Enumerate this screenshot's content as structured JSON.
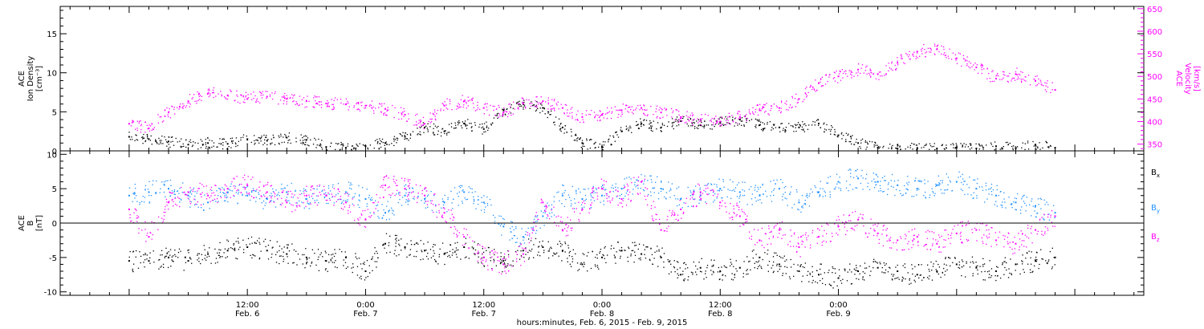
{
  "chart_data": [
    {
      "type": "scatter",
      "panel": "ion-density-velocity",
      "ylabel_left": [
        "ACE",
        "Ion Density",
        "[cm⁻³]"
      ],
      "ylabel_right": [
        "ACE",
        "Velocity",
        "[km/s]"
      ],
      "yticks_left": [
        "0",
        "5",
        "10",
        "15"
      ],
      "ylim_left": [
        0,
        18.5
      ],
      "yticks_right": [
        "350",
        "400",
        "450",
        "500",
        "550",
        "600",
        "650"
      ],
      "ylim_right": [
        335,
        655
      ],
      "series": [
        {
          "color": "#000000",
          "axis": "left",
          "x": [
            0,
            2,
            4,
            6,
            8,
            10,
            12,
            14,
            16,
            18,
            20,
            22,
            24,
            26,
            28,
            30,
            32,
            34,
            36,
            38,
            40,
            42,
            44,
            46,
            48,
            50,
            52,
            54,
            56,
            58,
            60,
            62,
            64,
            66,
            68,
            70,
            72,
            74,
            76,
            78,
            80,
            82,
            84,
            86,
            88,
            90,
            92,
            94
          ],
          "values": [
            1.8,
            1.5,
            1.2,
            0.8,
            1.0,
            0.9,
            1.5,
            1.3,
            1.7,
            1.4,
            0.5,
            0.4,
            0.6,
            1.0,
            1.8,
            3.0,
            2.5,
            3.5,
            2.8,
            5.2,
            6.0,
            5.5,
            3.0,
            1.0,
            0.5,
            2.5,
            3.5,
            3.0,
            3.8,
            3.3,
            3.6,
            4.0,
            3.3,
            3.0,
            3.0,
            3.5,
            2.0,
            1.0,
            0.4,
            0.3,
            0.3,
            0.3,
            0.4,
            0.3,
            0.6,
            0.3,
            0.8,
            0.4
          ]
        },
        {
          "color": "#ff00ff",
          "axis": "right",
          "x": [
            0,
            2,
            4,
            6,
            8,
            10,
            12,
            14,
            16,
            18,
            20,
            22,
            24,
            26,
            28,
            30,
            32,
            34,
            36,
            38,
            40,
            42,
            44,
            46,
            48,
            50,
            52,
            54,
            56,
            58,
            60,
            62,
            64,
            66,
            68,
            70,
            72,
            74,
            76,
            78,
            80,
            82,
            84,
            86,
            88,
            90,
            92,
            94
          ],
          "values": [
            395,
            385,
            420,
            445,
            462,
            458,
            450,
            455,
            450,
            445,
            440,
            438,
            435,
            428,
            415,
            395,
            435,
            445,
            430,
            420,
            440,
            445,
            430,
            410,
            415,
            425,
            430,
            420,
            410,
            405,
            400,
            410,
            425,
            430,
            450,
            485,
            500,
            515,
            505,
            530,
            555,
            560,
            540,
            520,
            495,
            505,
            490,
            470
          ]
        }
      ]
    },
    {
      "type": "scatter",
      "panel": "magnetic-field",
      "ylabel_left": [
        "ACE",
        "B",
        "[nT]"
      ],
      "yticks_left": [
        "-10",
        "-5",
        "0",
        "5",
        "10"
      ],
      "ylim_left": [
        -10.5,
        10.5
      ],
      "zero_line": true,
      "legend": [
        "Bx",
        "By",
        "Bz"
      ],
      "legend_placement": "right",
      "series": [
        {
          "name": "Bx",
          "color": "#000000",
          "x": [
            0,
            2,
            4,
            6,
            8,
            10,
            12,
            14,
            16,
            18,
            20,
            22,
            24,
            26,
            28,
            30,
            32,
            34,
            36,
            38,
            40,
            42,
            44,
            46,
            48,
            50,
            52,
            54,
            56,
            58,
            60,
            62,
            64,
            66,
            68,
            70,
            72,
            74,
            76,
            78,
            80,
            82,
            84,
            86,
            88,
            90,
            92,
            94
          ],
          "values": [
            -5.5,
            -5.5,
            -5.0,
            -5.5,
            -4.5,
            -4.0,
            -3.5,
            -4.0,
            -4.5,
            -5.0,
            -5.5,
            -5.0,
            -7.0,
            -3.0,
            -3.5,
            -4.0,
            -4.5,
            -3.5,
            -5.0,
            -5.5,
            -4.0,
            -3.5,
            -4.0,
            -6.0,
            -5.0,
            -4.0,
            -4.5,
            -5.0,
            -7.5,
            -6.5,
            -7.0,
            -6.5,
            -5.0,
            -6.0,
            -7.0,
            -7.5,
            -8.0,
            -7.0,
            -6.5,
            -7.0,
            -7.5,
            -7.0,
            -6.0,
            -6.5,
            -7.0,
            -6.0,
            -5.5,
            -5.0
          ]
        },
        {
          "name": "By",
          "color": "#1e90ff",
          "x": [
            0,
            2,
            4,
            6,
            8,
            10,
            12,
            14,
            16,
            18,
            20,
            22,
            24,
            26,
            28,
            30,
            32,
            34,
            36,
            38,
            40,
            42,
            44,
            46,
            48,
            50,
            52,
            54,
            56,
            58,
            60,
            62,
            64,
            66,
            68,
            70,
            72,
            74,
            76,
            78,
            80,
            82,
            84,
            86,
            88,
            90,
            92,
            94
          ],
          "values": [
            4.0,
            4.5,
            5.0,
            4.0,
            3.0,
            4.5,
            4.0,
            3.5,
            4.5,
            3.5,
            4.0,
            4.5,
            3.5,
            1.5,
            4.0,
            3.5,
            3.0,
            4.5,
            3.0,
            -0.5,
            -2.0,
            1.0,
            4.0,
            3.5,
            4.0,
            5.0,
            6.0,
            5.0,
            3.5,
            4.0,
            5.0,
            4.5,
            4.0,
            5.0,
            3.0,
            4.5,
            6.0,
            6.5,
            6.0,
            5.5,
            5.0,
            5.5,
            6.0,
            5.0,
            4.0,
            3.0,
            2.5,
            1.5
          ]
        },
        {
          "name": "Bz",
          "color": "#ff00ff",
          "x": [
            0,
            2,
            4,
            6,
            8,
            10,
            12,
            14,
            16,
            18,
            20,
            22,
            24,
            26,
            28,
            30,
            32,
            34,
            36,
            38,
            40,
            42,
            44,
            46,
            48,
            50,
            52,
            54,
            56,
            58,
            60,
            62,
            64,
            66,
            68,
            70,
            72,
            74,
            76,
            78,
            80,
            82,
            84,
            86,
            88,
            90,
            92,
            94
          ],
          "values": [
            2.0,
            -2.0,
            3.0,
            4.5,
            4.0,
            5.0,
            5.5,
            4.5,
            3.0,
            4.0,
            4.0,
            3.0,
            0.5,
            5.5,
            5.0,
            4.0,
            1.5,
            -2.0,
            -5.0,
            -6.0,
            -4.5,
            3.0,
            -1.0,
            2.0,
            5.0,
            3.5,
            6.0,
            -1.0,
            2.0,
            4.5,
            3.0,
            1.0,
            -2.5,
            -1.0,
            -3.5,
            -2.0,
            -0.5,
            0.5,
            -1.5,
            -2.5,
            -2.0,
            -3.0,
            -1.5,
            -1.0,
            -2.5,
            -3.0,
            -1.0,
            1.0
          ]
        }
      ]
    }
  ],
  "x_axis": {
    "xlim": [
      -7,
      103
    ],
    "ticks": [
      {
        "x": 12,
        "time": "12:00",
        "date": "Feb. 6"
      },
      {
        "x": 24,
        "time": "0:00",
        "date": "Feb. 7"
      },
      {
        "x": 36,
        "time": "12:00",
        "date": "Feb. 7"
      },
      {
        "x": 48,
        "time": "0:00",
        "date": "Feb. 8"
      },
      {
        "x": 60,
        "time": "12:00",
        "date": "Feb. 8"
      },
      {
        "x": 72,
        "time": "0:00",
        "date": "Feb. 9"
      }
    ],
    "xlabel": "hours:minutes, Feb.  6, 2015 - Feb.  9, 2015"
  },
  "legend_labels": {
    "bx": {
      "base": "B",
      "sub": "x"
    },
    "by": {
      "base": "B",
      "sub": "y"
    },
    "bz": {
      "base": "B",
      "sub": "z"
    }
  },
  "colors": {
    "black": "#000000",
    "magenta": "#ff00ff",
    "blue": "#1e90ff"
  }
}
